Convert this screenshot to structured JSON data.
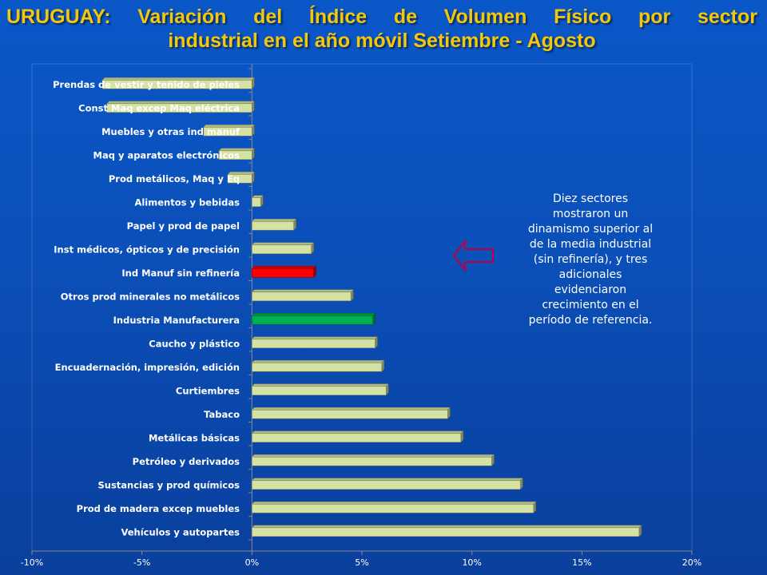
{
  "title": {
    "line1": "URUGUAY: Variación del Índice de Volumen Físico por sector",
    "line2": "industrial en el año móvil Setiembre - Agosto"
  },
  "annotation": "Diez sectores mostraron un dinamismo superior al de la media industrial (sin refinería), y tres adicionales evidenciaron crecimiento en el período de referencia.",
  "colors": {
    "bar_default": "#d4e2a3",
    "bar_highlight_red": "#ff0000",
    "bar_highlight_green": "#00b050",
    "title": "#f4c70a",
    "arrow": "#c0003c"
  },
  "chart_data": {
    "type": "bar",
    "orientation": "horizontal",
    "categories": [
      "Prendas de vestir y teñido de pieles",
      "Const Maq excep Maq eléctrica",
      "Muebles y otras ind manuf",
      "Maq y aparatos electrónicos",
      "Prod metálicos, Maq y Eq",
      "Alimentos y bebidas",
      "Papel y prod de papel",
      "Inst médicos, ópticos y de precisión",
      "Ind Manuf sin refinería",
      "Otros prod minerales no metálicos",
      "Industria Manufacturera",
      "Caucho y plástico",
      "Encuadernación, impresión, edición",
      "Curtiembres",
      "Tabaco",
      "Metálicas básicas",
      "Petróleo y derivados",
      "Sustancias y prod químicos",
      "Prod de madera excep muebles",
      "Vehículos y autopartes"
    ],
    "values": [
      -6.8,
      -6.6,
      -2.2,
      -1.5,
      -1.1,
      0.4,
      1.9,
      2.7,
      2.8,
      4.5,
      5.5,
      5.6,
      5.9,
      6.1,
      8.9,
      9.5,
      10.9,
      12.2,
      12.8,
      17.6
    ],
    "highlight": {
      "Ind Manuf sin refinería": "red",
      "Industria Manufacturera": "green"
    },
    "xlim": [
      -10,
      20
    ],
    "xticks": [
      "-10%",
      "-5%",
      "0%",
      "5%",
      "10%",
      "15%",
      "20%"
    ],
    "xtick_values": [
      -10,
      -5,
      0,
      5,
      10,
      15,
      20
    ],
    "xlabel": "",
    "ylabel": "",
    "grid": false,
    "legend": "none"
  }
}
